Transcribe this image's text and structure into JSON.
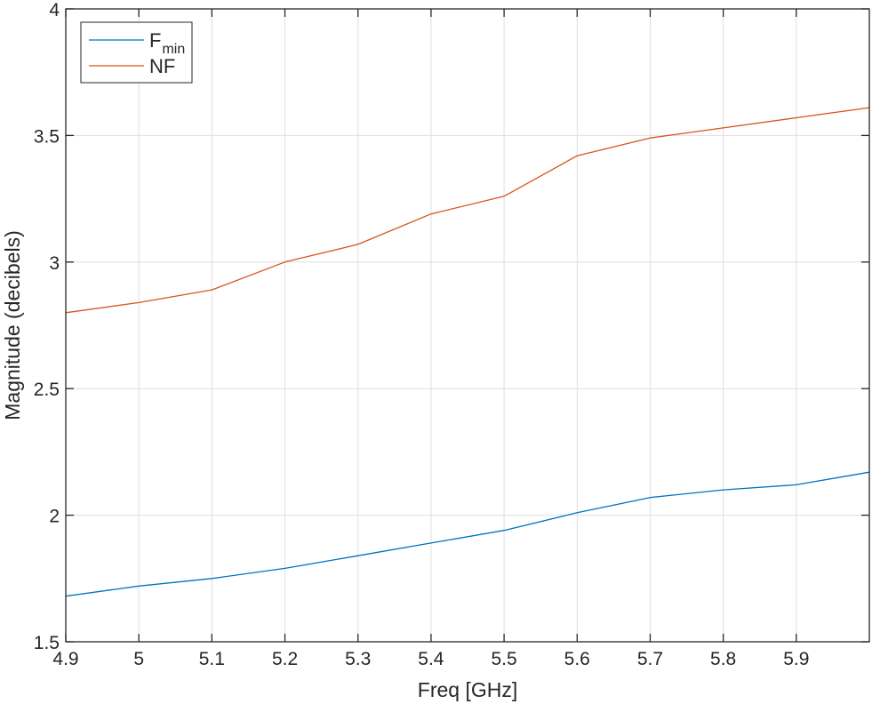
{
  "chart_data": {
    "type": "line",
    "title": "",
    "xlabel": "Freq [GHz]",
    "ylabel": "Magnitude (decibels)",
    "xlim": [
      4.9,
      6.0
    ],
    "ylim": [
      1.5,
      4.0
    ],
    "grid": true,
    "legend_position": "upper-left",
    "x": [
      4.9,
      5.0,
      5.1,
      5.2,
      5.3,
      5.4,
      5.5,
      5.6,
      5.7,
      5.8,
      5.9,
      6.0
    ],
    "xticks": [
      4.9,
      5.0,
      5.1,
      5.2,
      5.3,
      5.4,
      5.5,
      5.6,
      5.7,
      5.8,
      5.9
    ],
    "xtick_labels": [
      "4.9",
      "5",
      "5.1",
      "5.2",
      "5.3",
      "5.4",
      "5.5",
      "5.6",
      "5.7",
      "5.8",
      "5.9"
    ],
    "yticks": [
      1.5,
      2.0,
      2.5,
      3.0,
      3.5,
      4.0
    ],
    "ytick_labels": [
      "1.5",
      "2",
      "2.5",
      "3",
      "3.5",
      "4"
    ],
    "series": [
      {
        "name": "F_min",
        "legend_main": "F",
        "legend_sub": "min",
        "color": "#0072BD",
        "values": [
          1.68,
          1.72,
          1.75,
          1.79,
          1.84,
          1.89,
          1.94,
          2.01,
          2.07,
          2.1,
          2.12,
          2.17
        ]
      },
      {
        "name": "NF",
        "legend_main": "NF",
        "legend_sub": "",
        "color": "#D95319",
        "values": [
          2.8,
          2.84,
          2.89,
          3.0,
          3.07,
          3.19,
          3.26,
          3.42,
          3.49,
          3.53,
          3.57,
          3.61
        ]
      }
    ]
  },
  "colors": {
    "axis": "#262626",
    "grid": "#dfdfdf",
    "background": "#ffffff"
  }
}
